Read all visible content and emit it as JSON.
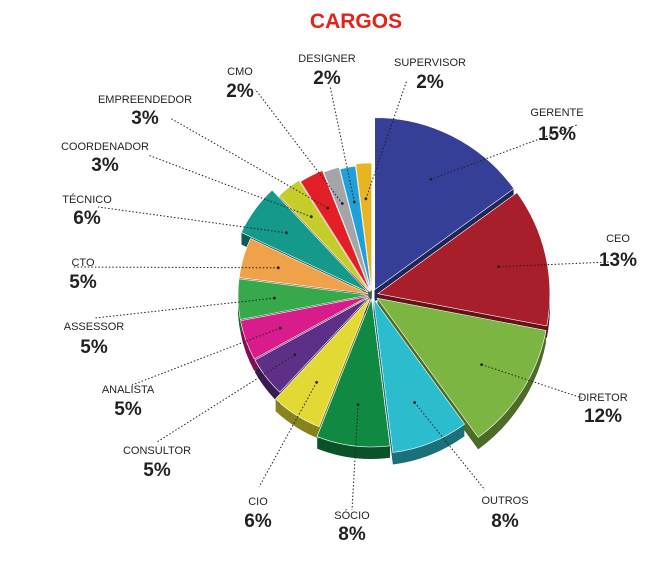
{
  "chart_data": {
    "type": "pie",
    "title": "CARGOS",
    "title_color": "#e2231a",
    "slices": [
      {
        "label": "GERENTE",
        "value_label": "15%",
        "value": 15,
        "color": "#353f97"
      },
      {
        "label": "CEO",
        "value_label": "13%",
        "value": 13,
        "color": "#a81e2a"
      },
      {
        "label": "DIRETOR",
        "value_label": "12%",
        "value": 12,
        "color": "#7db542"
      },
      {
        "label": "OUTROS",
        "value_label": "8%",
        "value": 8,
        "color": "#2bbdcd"
      },
      {
        "label": "SÓCIO",
        "value_label": "8%",
        "value": 8,
        "color": "#108a43"
      },
      {
        "label": "CIO",
        "value_label": "6%",
        "value": 6,
        "color": "#e3d934"
      },
      {
        "label": "CONSULTOR",
        "value_label": "5%",
        "value": 5,
        "color": "#5d2f86"
      },
      {
        "label": "ANALISTA",
        "value_label": "5%",
        "value": 5,
        "color": "#d91c8c"
      },
      {
        "label": "ASSESSOR",
        "value_label": "5%",
        "value": 5,
        "color": "#36a94d"
      },
      {
        "label": "CTO",
        "value_label": "5%",
        "value": 5,
        "color": "#f0a24a"
      },
      {
        "label": "TÉCNICO",
        "value_label": "6%",
        "value": 6,
        "color": "#14998b"
      },
      {
        "label": "COORDENADOR",
        "value_label": "3%",
        "value": 3,
        "color": "#c6cd2b"
      },
      {
        "label": "EMPREENDEDOR",
        "value_label": "3%",
        "value": 3,
        "color": "#e21f26"
      },
      {
        "label": "CMO",
        "value_label": "2%",
        "value": 2,
        "color": "#a3a5a8"
      },
      {
        "label": "DESIGNER",
        "value_label": "2%",
        "value": 2,
        "color": "#209fd8"
      },
      {
        "label": "SUPERVISOR",
        "value_label": "2%",
        "value": 2,
        "color": "#eab420"
      }
    ]
  }
}
